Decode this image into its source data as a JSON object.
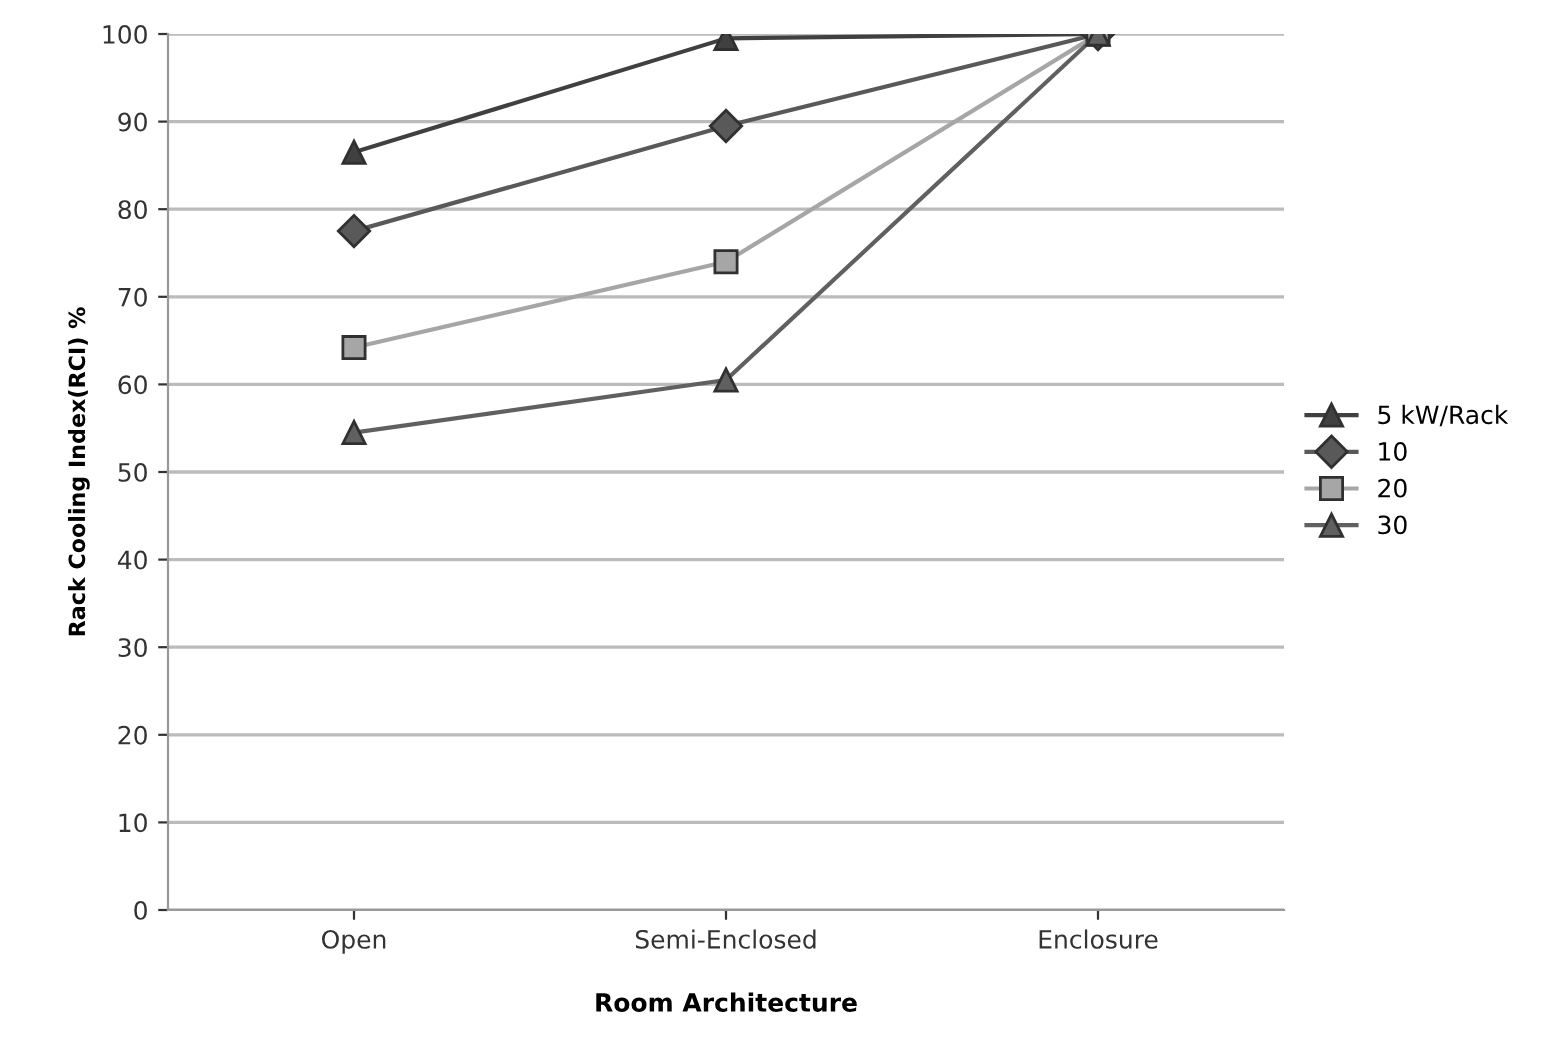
{
  "chart_data": {
    "type": "line",
    "xlabel": "Room Architecture",
    "ylabel": "Rack Cooling Index(RCI) %",
    "categories": [
      "Open",
      "Semi-Enclosed",
      "Enclosure"
    ],
    "series": [
      {
        "name": "5 kW/Rack",
        "color": "#404040",
        "marker": "triangle",
        "values": [
          86.5,
          99.5,
          100
        ]
      },
      {
        "name": "10",
        "color": "#595959",
        "marker": "diamond",
        "values": [
          77.5,
          89.5,
          100
        ]
      },
      {
        "name": "20",
        "color": "#a6a6a6",
        "marker": "square",
        "values": [
          64.2,
          74,
          100
        ]
      },
      {
        "name": "30",
        "color": "#606060",
        "marker": "triangle",
        "values": [
          54.5,
          60.5,
          100
        ]
      }
    ],
    "ylim": [
      0,
      100
    ],
    "yticks": [
      0,
      10,
      20,
      30,
      40,
      50,
      60,
      70,
      80,
      90,
      100
    ],
    "grid": "y",
    "legend": "right",
    "line_style": "solid"
  }
}
